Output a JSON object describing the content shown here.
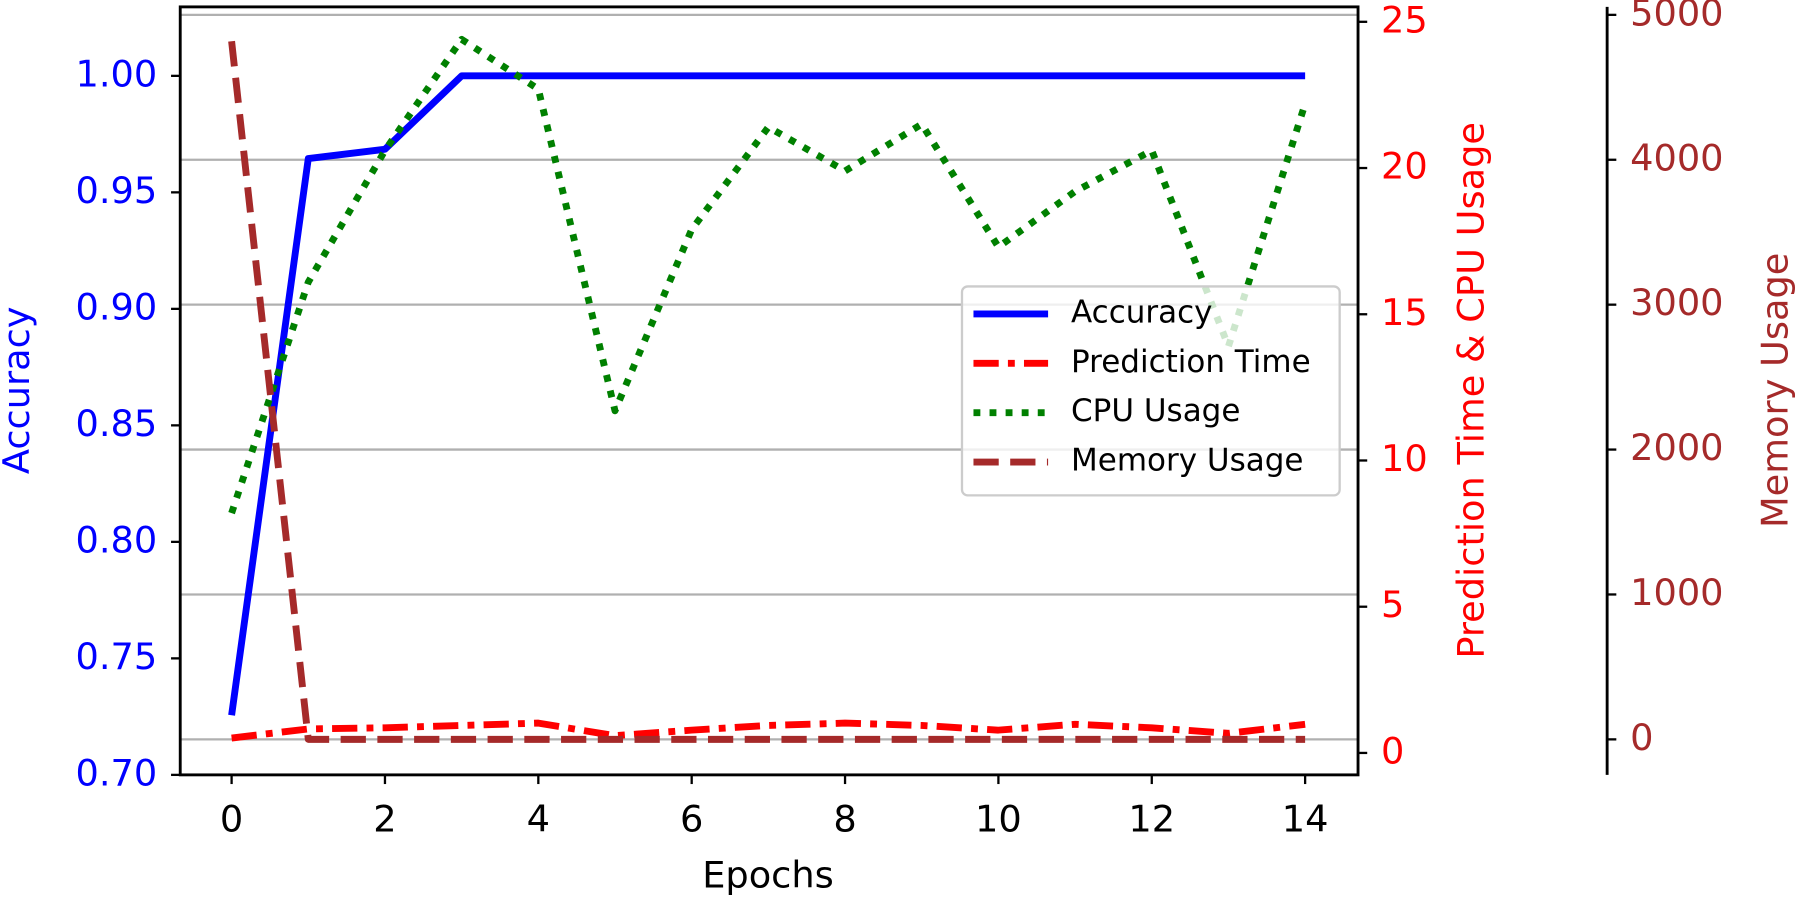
{
  "chart_data": {
    "type": "line",
    "x_label": "Epochs",
    "y_label": "Accuracy",
    "y2_label": "Prediction Time & CPU Usage",
    "y3_label": "Memory Usage",
    "x": [
      0,
      1,
      2,
      3,
      4,
      5,
      6,
      7,
      8,
      9,
      10,
      11,
      12,
      13,
      14
    ],
    "xlim": [
      -0.67,
      14.69
    ],
    "xticks": [
      0,
      2,
      4,
      6,
      8,
      10,
      12,
      14
    ],
    "ylim": [
      0.7,
      1.0296
    ],
    "yticks": [
      {
        "value": 0.7,
        "label": "0.70"
      },
      {
        "value": 0.75,
        "label": "0.75"
      },
      {
        "value": 0.8,
        "label": "0.80"
      },
      {
        "value": 0.85,
        "label": "0.85"
      },
      {
        "value": 0.9,
        "label": "0.90"
      },
      {
        "value": 0.95,
        "label": "0.95"
      },
      {
        "value": 1.0,
        "label": "1.00"
      }
    ],
    "y2lim": [
      -0.75,
      25.51
    ],
    "y2ticks": [
      0,
      5,
      10,
      15,
      20,
      25
    ],
    "y3lim": [
      -245,
      5055
    ],
    "y3ticks": [
      0,
      1000,
      2000,
      3000,
      4000,
      5000
    ],
    "grid": "y3",
    "legend": "center right",
    "series": [
      {
        "name": "Accuracy",
        "color": "#0000ff",
        "linestyle": "solid",
        "axis": "y",
        "values": [
          0.7256,
          0.9645,
          0.9685,
          1.0,
          1.0,
          1.0,
          1.0,
          1.0,
          1.0,
          1.0,
          1.0,
          1.0,
          1.0,
          1.0,
          1.0
        ]
      },
      {
        "name": "Prediction Time",
        "color": "#ff0000",
        "linestyle": "dashdot",
        "axis": "y2",
        "values": [
          0.51,
          0.82,
          0.86,
          0.94,
          1.02,
          0.59,
          0.78,
          0.94,
          1.02,
          0.94,
          0.78,
          0.98,
          0.86,
          0.67,
          0.98
        ]
      },
      {
        "name": "CPU Usage",
        "color": "#008000",
        "linestyle": "dotted",
        "axis": "y2",
        "values": [
          8.2,
          16.1,
          20.6,
          24.4,
          22.7,
          11.7,
          17.9,
          21.4,
          19.9,
          21.5,
          17.3,
          19.2,
          20.6,
          13.9,
          22.2
        ]
      },
      {
        "name": "Memory Usage",
        "color": "#a52a2a",
        "linestyle": "dashed",
        "axis": "y3",
        "values": [
          4818,
          0,
          0,
          0,
          0,
          0,
          0,
          0,
          0,
          0,
          0,
          0,
          0,
          0,
          0
        ]
      }
    ]
  }
}
